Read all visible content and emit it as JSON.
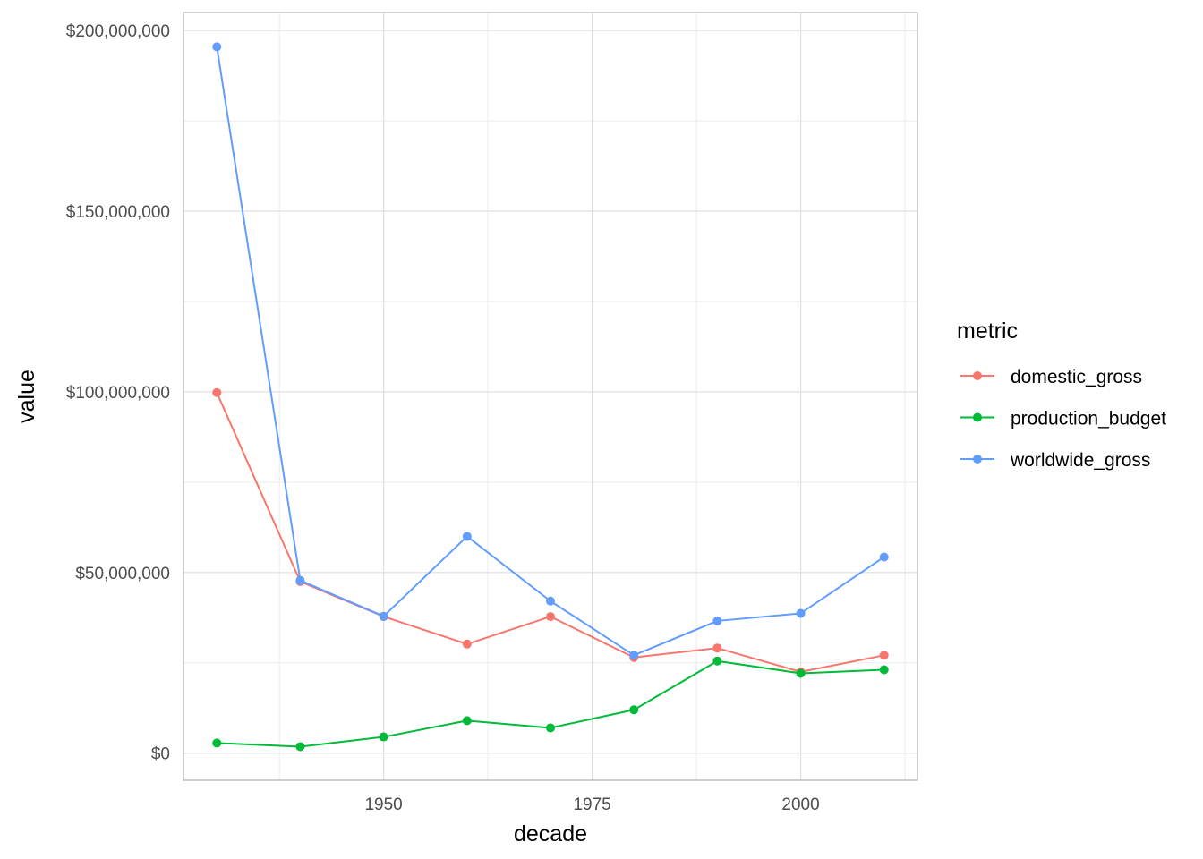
{
  "chart_data": {
    "type": "line",
    "xlabel": "decade",
    "ylabel": "value",
    "x": [
      1930,
      1940,
      1950,
      1960,
      1970,
      1980,
      1990,
      2000,
      2010
    ],
    "xlim": [
      1926,
      2014
    ],
    "ylim": [
      -7500000,
      205000000
    ],
    "x_ticks": [
      1950,
      1975,
      2000
    ],
    "x_tick_labels": [
      "1950",
      "1975",
      "2000"
    ],
    "x_minor_ticks": [
      1937.5,
      1962.5,
      1987.5,
      2012.5
    ],
    "y_ticks": [
      0,
      50000000,
      100000000,
      150000000,
      200000000
    ],
    "y_tick_labels": [
      "$0",
      "$50,000,000",
      "$100,000,000",
      "$150,000,000",
      "$200,000,000"
    ],
    "y_minor_ticks": [
      25000000,
      75000000,
      125000000,
      175000000
    ],
    "grid": true,
    "legend": {
      "title": "metric",
      "position": "right"
    },
    "series": [
      {
        "name": "domestic_gross",
        "color": "#F8766D",
        "values": [
          99800000,
          47500000,
          37800000,
          30200000,
          37800000,
          26500000,
          29100000,
          22500000,
          27100000
        ]
      },
      {
        "name": "production_budget",
        "color": "#00BA38",
        "values": [
          2800000,
          1800000,
          4500000,
          9000000,
          7000000,
          12000000,
          25500000,
          22100000,
          23100000
        ]
      },
      {
        "name": "worldwide_gross",
        "color": "#619CFF",
        "values": [
          195500000,
          47800000,
          37900000,
          60000000,
          42100000,
          27100000,
          36600000,
          38700000,
          54300000
        ]
      }
    ]
  }
}
